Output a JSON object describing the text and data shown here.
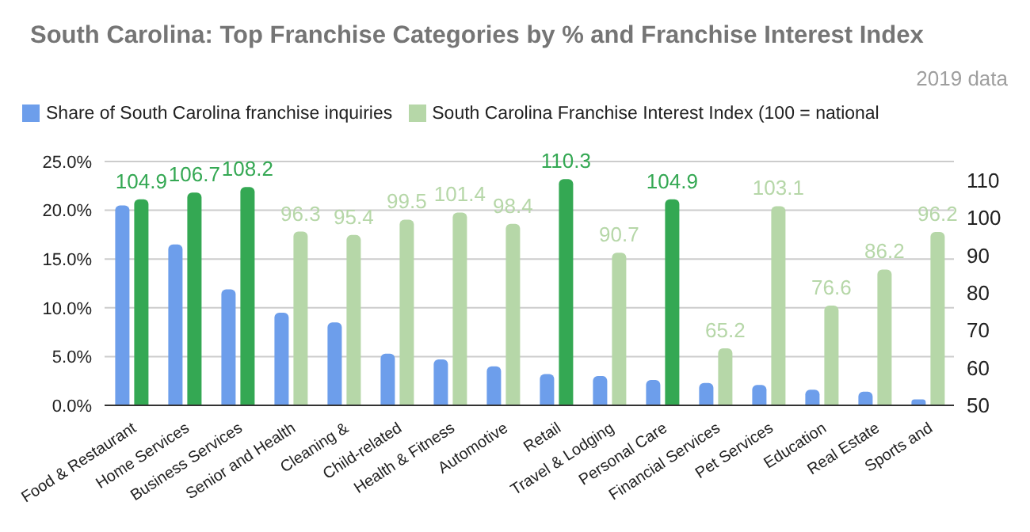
{
  "chart_data": {
    "type": "bar",
    "title": "South Carolina: Top Franchise Categories by % and Franchise Interest Index",
    "subtitle": "2019 data",
    "categories": [
      "Food & Restaurant",
      "Home Services",
      "Business Services",
      "Senior and Health",
      "Cleaning &",
      "Child-related",
      "Health & Fitness",
      "Automotive",
      "Retail",
      "Travel & Lodging",
      "Personal Care",
      "Financial Services",
      "Pet Services",
      "Education",
      "Real Estate",
      "Sports and"
    ],
    "series": [
      {
        "name": "Share of South Carolina franchise inquiries",
        "color": "#6d9eeb",
        "values": [
          20.5,
          16.5,
          11.9,
          9.5,
          8.5,
          5.3,
          4.7,
          4.0,
          3.2,
          3.0,
          2.6,
          2.3,
          2.1,
          1.6,
          1.4,
          0.6
        ]
      },
      {
        "name": "South Carolina Franchise Interest Index (100 = national",
        "color": "#b6d7a8",
        "axis": "y2",
        "colors": [
          "#34a853",
          "#34a853",
          "#34a853",
          "#b6d7a8",
          "#b6d7a8",
          "#b6d7a8",
          "#b6d7a8",
          "#b6d7a8",
          "#34a853",
          "#b6d7a8",
          "#34a853",
          "#b6d7a8",
          "#b6d7a8",
          "#b6d7a8",
          "#b6d7a8",
          "#b6d7a8"
        ],
        "values": [
          104.9,
          106.7,
          108.2,
          96.3,
          95.4,
          99.5,
          101.4,
          98.4,
          110.3,
          90.7,
          104.9,
          65.2,
          103.1,
          76.6,
          86.2,
          96.2
        ],
        "value_labels": [
          "104.9",
          "106.7",
          "108.2",
          "96.3",
          "95.4",
          "99.5",
          "101.4",
          "98.4",
          "110.3",
          "90.7",
          "104.9",
          "65.2",
          "103.1",
          "76.6",
          "86.2",
          "96.2"
        ]
      }
    ],
    "ylim": [
      0,
      25
    ],
    "yticks": [
      {
        "value": 0,
        "label": "0.0%"
      },
      {
        "value": 5,
        "label": "5.0%"
      },
      {
        "value": 10,
        "label": "10.0%"
      },
      {
        "value": 15,
        "label": "15.0%"
      },
      {
        "value": 20,
        "label": "20.0%"
      },
      {
        "value": 25,
        "label": "25.0%"
      }
    ],
    "y2lim": [
      50,
      115
    ],
    "y2ticks": [
      50,
      60,
      70,
      80,
      90,
      100,
      110
    ],
    "grid": "y",
    "legend": "top left"
  }
}
